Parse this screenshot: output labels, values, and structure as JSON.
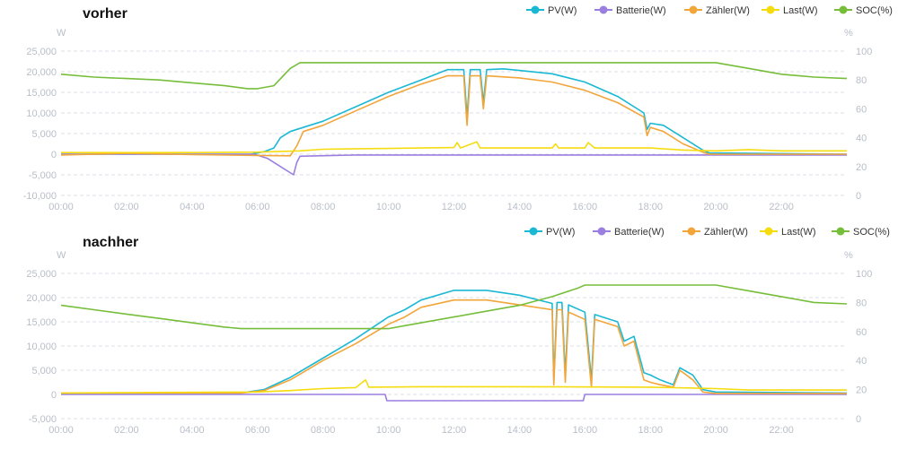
{
  "chart_data": [
    {
      "type": "line",
      "title": "vorher",
      "xlabel": "",
      "left_unit": "W",
      "right_unit": "%",
      "ylim_left": [
        -10000,
        25000
      ],
      "yticks_left": [
        "-10,000",
        "-5,000",
        "0",
        "5,000",
        "10,000",
        "15,000",
        "20,000",
        "25,000"
      ],
      "ylim_right": [
        0,
        100
      ],
      "yticks_right": [
        "0",
        "20",
        "40",
        "60",
        "80",
        "100"
      ],
      "x_ticks": [
        "00:00",
        "02:00",
        "04:00",
        "06:00",
        "08:00",
        "10:00",
        "12:00",
        "14:00",
        "16:00",
        "18:00",
        "20:00",
        "22:00"
      ],
      "grid": true,
      "legend_position": "top-right",
      "series": [
        {
          "name": "PV(W)",
          "axis": "left",
          "color": "#1bb8d4",
          "points": [
            [
              0,
              0
            ],
            [
              5.8,
              0
            ],
            [
              6.2,
              600
            ],
            [
              6.5,
              1500
            ],
            [
              6.7,
              4000
            ],
            [
              7,
              5500
            ],
            [
              8,
              8000
            ],
            [
              9,
              11500
            ],
            [
              10,
              15000
            ],
            [
              11,
              18000
            ],
            [
              11.8,
              20500
            ],
            [
              12.3,
              20500
            ],
            [
              12.4,
              9000
            ],
            [
              12.5,
              20500
            ],
            [
              12.8,
              20500
            ],
            [
              12.9,
              12500
            ],
            [
              13,
              20500
            ],
            [
              13.5,
              20700
            ],
            [
              14,
              20300
            ],
            [
              15,
              19500
            ],
            [
              16,
              17500
            ],
            [
              17,
              14000
            ],
            [
              17.8,
              10000
            ],
            [
              17.9,
              6000
            ],
            [
              18,
              7500
            ],
            [
              18.4,
              7000
            ],
            [
              19,
              4000
            ],
            [
              19.6,
              1000
            ],
            [
              19.8,
              300
            ],
            [
              24,
              0
            ]
          ]
        },
        {
          "name": "Batterie(W)",
          "axis": "left",
          "color": "#9b7fe0",
          "points": [
            [
              0,
              0
            ],
            [
              5.9,
              0
            ],
            [
              6.3,
              -1000
            ],
            [
              6.7,
              -3000
            ],
            [
              7.1,
              -5000
            ],
            [
              7.2,
              -2000
            ],
            [
              7.3,
              -500
            ],
            [
              9,
              -200
            ],
            [
              24,
              -200
            ]
          ]
        },
        {
          "name": "Zähler(W)",
          "axis": "left",
          "color": "#f2a53b",
          "points": [
            [
              0,
              -200
            ],
            [
              2,
              200
            ],
            [
              4,
              -100
            ],
            [
              6,
              -300
            ],
            [
              7,
              -400
            ],
            [
              7.2,
              2000
            ],
            [
              7.4,
              5500
            ],
            [
              8,
              7000
            ],
            [
              9,
              10500
            ],
            [
              10,
              14000
            ],
            [
              11,
              17000
            ],
            [
              11.8,
              19000
            ],
            [
              12.3,
              19000
            ],
            [
              12.4,
              7000
            ],
            [
              12.5,
              19000
            ],
            [
              12.8,
              19000
            ],
            [
              12.9,
              11000
            ],
            [
              13,
              19000
            ],
            [
              14,
              18500
            ],
            [
              15,
              17500
            ],
            [
              16,
              15500
            ],
            [
              17,
              12500
            ],
            [
              17.8,
              9000
            ],
            [
              17.9,
              4500
            ],
            [
              18,
              6500
            ],
            [
              18.4,
              5500
            ],
            [
              19,
              2500
            ],
            [
              19.6,
              500
            ],
            [
              19.8,
              0
            ],
            [
              24,
              0
            ]
          ]
        },
        {
          "name": "Last(W)",
          "axis": "left",
          "color": "#f5dc0f",
          "points": [
            [
              0,
              400
            ],
            [
              4,
              400
            ],
            [
              6,
              500
            ],
            [
              7.3,
              800
            ],
            [
              8,
              1200
            ],
            [
              10,
              1400
            ],
            [
              11,
              1500
            ],
            [
              12,
              1600
            ],
            [
              12.1,
              2800
            ],
            [
              12.2,
              1500
            ],
            [
              12.7,
              3000
            ],
            [
              12.8,
              1500
            ],
            [
              15,
              1500
            ],
            [
              15.1,
              2500
            ],
            [
              15.2,
              1500
            ],
            [
              16,
              1500
            ],
            [
              16.1,
              2800
            ],
            [
              16.3,
              1500
            ],
            [
              18,
              1500
            ],
            [
              19,
              1000
            ],
            [
              20,
              800
            ],
            [
              21,
              1100
            ],
            [
              22,
              800
            ],
            [
              24,
              800
            ]
          ]
        },
        {
          "name": "SOC(%)",
          "axis": "right",
          "color": "#76be3a",
          "points": [
            [
              0,
              84
            ],
            [
              1,
              82
            ],
            [
              2,
              81
            ],
            [
              3,
              80
            ],
            [
              4,
              78
            ],
            [
              5,
              76
            ],
            [
              5.7,
              74
            ],
            [
              6,
              74
            ],
            [
              6.5,
              76
            ],
            [
              7,
              88
            ],
            [
              7.3,
              92
            ],
            [
              7.6,
              92
            ],
            [
              20,
              92
            ],
            [
              21,
              88
            ],
            [
              22,
              84
            ],
            [
              23,
              82
            ],
            [
              24,
              81
            ]
          ]
        }
      ]
    },
    {
      "type": "line",
      "title": "nachher",
      "xlabel": "",
      "left_unit": "W",
      "right_unit": "%",
      "ylim_left": [
        -5000,
        25000
      ],
      "yticks_left": [
        "-5,000",
        "0",
        "5,000",
        "10,000",
        "15,000",
        "20,000",
        "25,000"
      ],
      "ylim_right": [
        0,
        100
      ],
      "yticks_right": [
        "0",
        "20",
        "40",
        "60",
        "80",
        "100"
      ],
      "x_ticks": [
        "00:00",
        "02:00",
        "04:00",
        "06:00",
        "08:00",
        "10:00",
        "12:00",
        "14:00",
        "16:00",
        "18:00",
        "20:00",
        "22:00"
      ],
      "grid": true,
      "legend_position": "top-right",
      "series": [
        {
          "name": "PV(W)",
          "axis": "left",
          "color": "#1bb8d4",
          "points": [
            [
              0,
              300
            ],
            [
              5.5,
              300
            ],
            [
              6.2,
              1000
            ],
            [
              7,
              3500
            ],
            [
              8,
              7500
            ],
            [
              9,
              11500
            ],
            [
              10,
              16000
            ],
            [
              10.5,
              17500
            ],
            [
              11,
              19500
            ],
            [
              12,
              21500
            ],
            [
              13,
              21500
            ],
            [
              14,
              20500
            ],
            [
              15,
              18800
            ],
            [
              15.05,
              3000
            ],
            [
              15.15,
              19000
            ],
            [
              15.3,
              19000
            ],
            [
              15.4,
              4000
            ],
            [
              15.5,
              18500
            ],
            [
              16,
              17000
            ],
            [
              16.2,
              3000
            ],
            [
              16.3,
              16500
            ],
            [
              17,
              15000
            ],
            [
              17.2,
              11000
            ],
            [
              17.5,
              12000
            ],
            [
              17.8,
              4500
            ],
            [
              18,
              4000
            ],
            [
              18.3,
              3000
            ],
            [
              18.7,
              2000
            ],
            [
              18.9,
              5500
            ],
            [
              19.3,
              4000
            ],
            [
              19.6,
              1000
            ],
            [
              20,
              500
            ],
            [
              24,
              300
            ]
          ]
        },
        {
          "name": "Batterie(W)",
          "axis": "left",
          "color": "#9b7fe0",
          "points": [
            [
              0,
              0
            ],
            [
              9.9,
              0
            ],
            [
              9.95,
              -1300
            ],
            [
              15.95,
              -1300
            ],
            [
              16,
              0
            ],
            [
              24,
              0
            ]
          ]
        },
        {
          "name": "Zähler(W)",
          "axis": "left",
          "color": "#f2a53b",
          "points": [
            [
              0,
              300
            ],
            [
              5.5,
              300
            ],
            [
              6.2,
              800
            ],
            [
              7,
              3000
            ],
            [
              8,
              7000
            ],
            [
              9,
              10500
            ],
            [
              10,
              14500
            ],
            [
              10.5,
              16000
            ],
            [
              11,
              18000
            ],
            [
              12,
              19500
            ],
            [
              13,
              19500
            ],
            [
              14,
              18500
            ],
            [
              15,
              17500
            ],
            [
              15.05,
              2000
            ],
            [
              15.15,
              17500
            ],
            [
              15.3,
              17500
            ],
            [
              15.4,
              2500
            ],
            [
              15.5,
              17000
            ],
            [
              16,
              15500
            ],
            [
              16.2,
              1500
            ],
            [
              16.3,
              15500
            ],
            [
              17,
              14000
            ],
            [
              17.2,
              10000
            ],
            [
              17.5,
              11000
            ],
            [
              17.8,
              3000
            ],
            [
              18,
              2500
            ],
            [
              18.3,
              2000
            ],
            [
              18.7,
              1500
            ],
            [
              18.9,
              5000
            ],
            [
              19.3,
              3000
            ],
            [
              19.6,
              500
            ],
            [
              20,
              200
            ],
            [
              24,
              200
            ]
          ]
        },
        {
          "name": "Last(W)",
          "axis": "left",
          "color": "#f5dc0f",
          "points": [
            [
              0,
              300
            ],
            [
              6,
              500
            ],
            [
              7,
              800
            ],
            [
              8,
              1200
            ],
            [
              9,
              1400
            ],
            [
              9.3,
              3000
            ],
            [
              9.4,
              1500
            ],
            [
              11,
              1600
            ],
            [
              14,
              1600
            ],
            [
              18,
              1500
            ],
            [
              20,
              1200
            ],
            [
              21,
              900
            ],
            [
              24,
              900
            ]
          ]
        },
        {
          "name": "SOC(%)",
          "axis": "right",
          "color": "#76be3a",
          "points": [
            [
              0,
              78
            ],
            [
              1,
              75
            ],
            [
              2,
              72
            ],
            [
              3,
              69
            ],
            [
              4,
              66
            ],
            [
              5,
              63
            ],
            [
              5.5,
              62
            ],
            [
              10,
              62
            ],
            [
              10.5,
              64
            ],
            [
              11,
              66
            ],
            [
              12,
              70
            ],
            [
              13,
              74
            ],
            [
              14,
              78
            ],
            [
              15,
              84
            ],
            [
              15.8,
              90
            ],
            [
              16,
              92
            ],
            [
              20,
              92
            ],
            [
              21,
              88
            ],
            [
              22,
              84
            ],
            [
              23,
              80
            ],
            [
              24,
              79
            ]
          ]
        }
      ]
    }
  ]
}
